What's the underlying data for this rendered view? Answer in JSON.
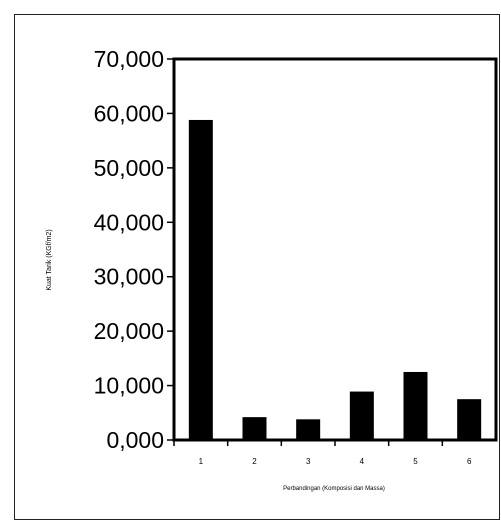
{
  "chart_data": {
    "type": "bar",
    "title": "",
    "xlabel": "Perbandingan (Komposisi dan Massa)",
    "ylabel": "Kuat Tarik (KGf/m2)",
    "categories": [
      "1",
      "2",
      "3",
      "4",
      "5",
      "6"
    ],
    "values": [
      58.8,
      4.2,
      3.8,
      8.9,
      12.5,
      7.5
    ],
    "ylim": [
      0,
      70
    ],
    "yticks": [
      0,
      10,
      20,
      30,
      40,
      50,
      60,
      70
    ],
    "ytick_labels": [
      "0,000",
      "10,000",
      "20,000",
      "30,000",
      "40,000",
      "50,000",
      "60,000",
      "70,000"
    ],
    "grid": false,
    "legend": "none",
    "colors": {
      "bar": "#000000",
      "axis": "#000000",
      "frame": "#222222"
    }
  }
}
